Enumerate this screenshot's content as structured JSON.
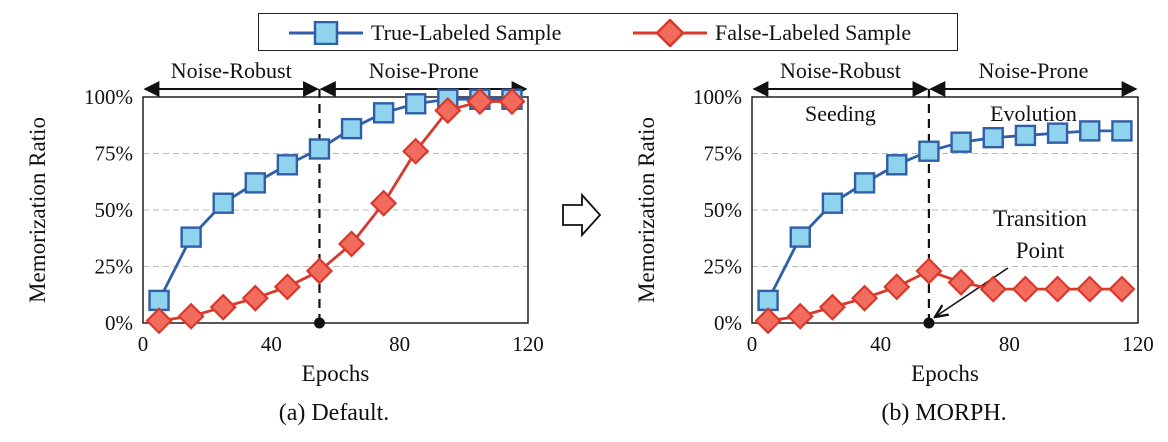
{
  "legend": {
    "true_label": "True-Labeled Sample",
    "false_label": "False-Labeled Sample"
  },
  "colors": {
    "true_fill": "#8fd3ee",
    "true_stroke": "#2f5fa7",
    "false_fill": "#f26c5e",
    "false_stroke": "#d9382b",
    "grid": "#bbbbbb"
  },
  "arrow_icon": "right-hollow-arrow-icon",
  "chart_data": [
    {
      "type": "line",
      "caption": "(a) Default.",
      "xlabel": "Epochs",
      "ylabel": "Memorization Ratio",
      "xlim": [
        0,
        120
      ],
      "ylim": [
        0,
        100
      ],
      "xticks": [
        "0",
        "40",
        "80",
        "120"
      ],
      "yticks": [
        "0%",
        "25%",
        "50%",
        "75%",
        "100%"
      ],
      "grid": "horizontal dashed",
      "transition_epoch": 55,
      "phase_labels": {
        "left": "Noise-Robust",
        "right": "Noise-Prone"
      },
      "sublabels": {
        "left": "",
        "right": ""
      },
      "annotation": "",
      "x": [
        5,
        15,
        25,
        35,
        45,
        55,
        65,
        75,
        85,
        95,
        105,
        115
      ],
      "series": [
        {
          "name": "True-Labeled Sample",
          "values": [
            10,
            38,
            53,
            62,
            70,
            77,
            86,
            93,
            97,
            99,
            99,
            99
          ]
        },
        {
          "name": "False-Labeled Sample",
          "values": [
            1,
            3,
            7,
            11,
            16,
            23,
            35,
            53,
            76,
            94,
            98,
            98
          ]
        }
      ]
    },
    {
      "type": "line",
      "caption": "(b) MORPH.",
      "xlabel": "Epochs",
      "ylabel": "Memorization Ratio",
      "xlim": [
        0,
        120
      ],
      "ylim": [
        0,
        100
      ],
      "xticks": [
        "0",
        "40",
        "80",
        "120"
      ],
      "yticks": [
        "0%",
        "25%",
        "50%",
        "75%",
        "100%"
      ],
      "grid": "horizontal dashed",
      "transition_epoch": 55,
      "phase_labels": {
        "left": "Noise-Robust",
        "right": "Noise-Prone"
      },
      "sublabels": {
        "left": "Seeding",
        "right": "Evolution"
      },
      "annotation": "Transition\nPoint",
      "x": [
        5,
        15,
        25,
        35,
        45,
        55,
        65,
        75,
        85,
        95,
        105,
        115
      ],
      "series": [
        {
          "name": "True-Labeled Sample",
          "values": [
            10,
            38,
            53,
            62,
            70,
            76,
            80,
            82,
            83,
            84,
            85,
            85
          ]
        },
        {
          "name": "False-Labeled Sample",
          "values": [
            1,
            3,
            7,
            11,
            16,
            23,
            18,
            15,
            15,
            15,
            15,
            15
          ]
        }
      ]
    }
  ]
}
